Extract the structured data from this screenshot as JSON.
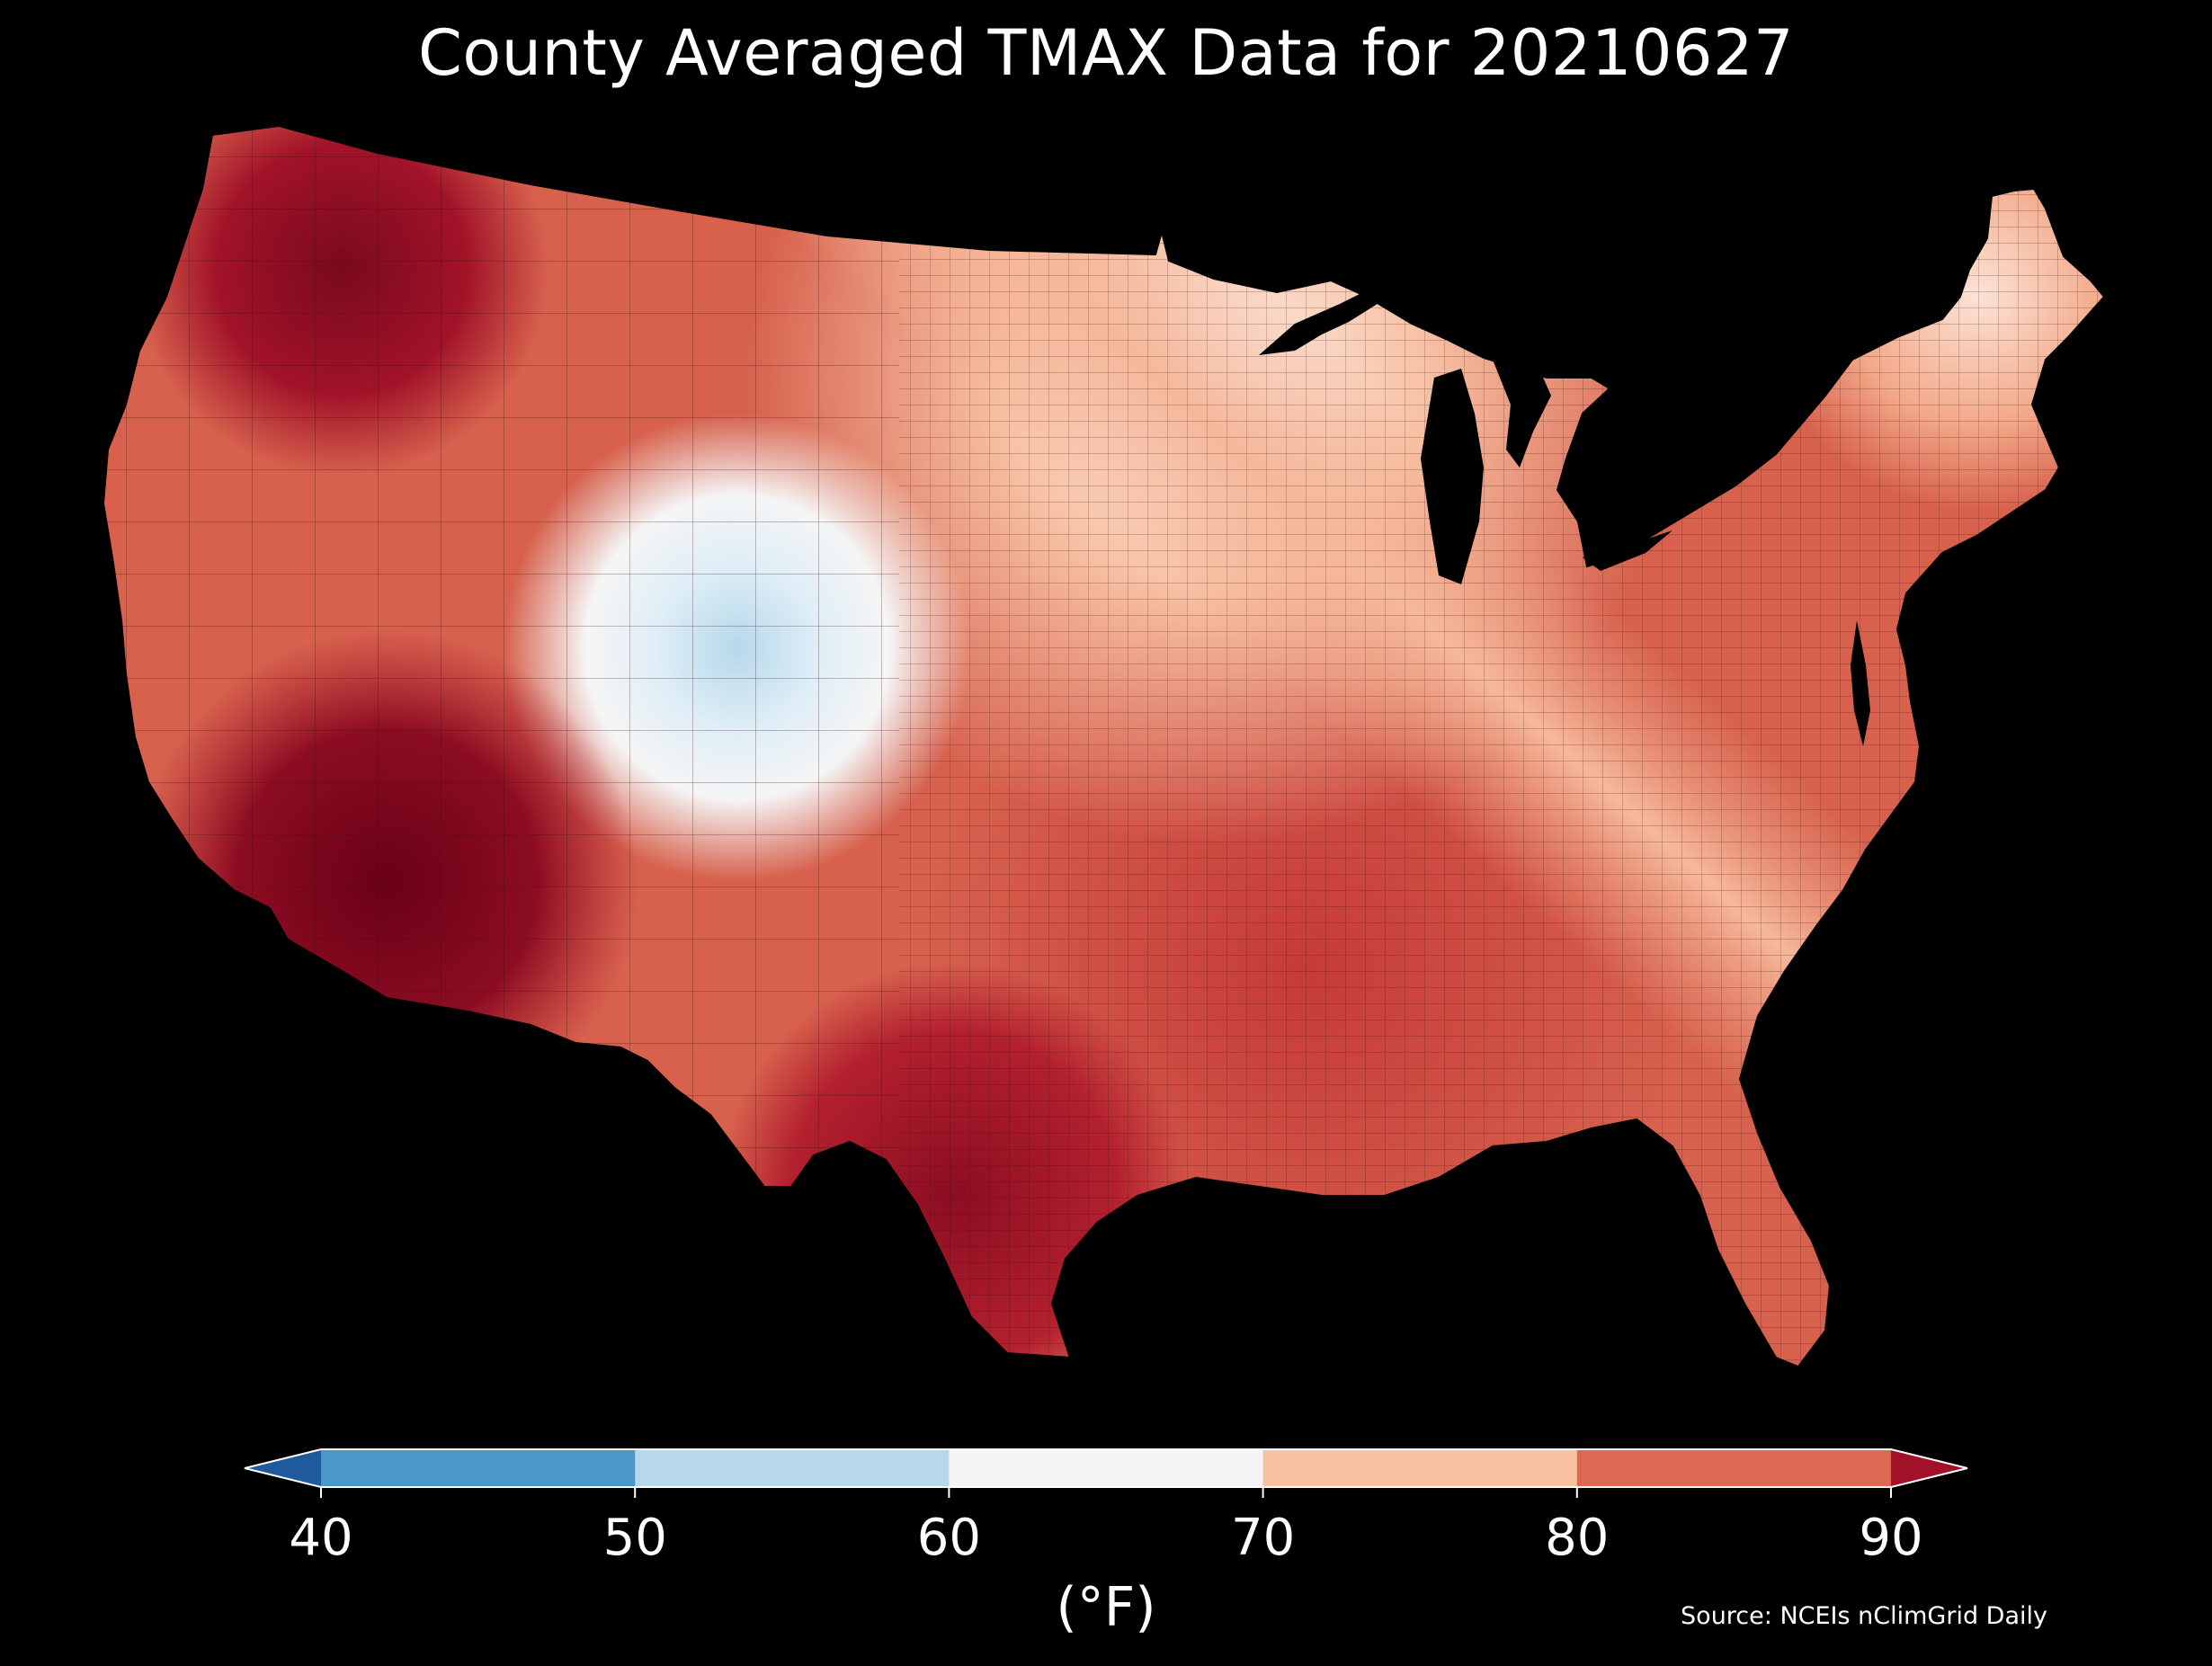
{
  "title": "County Averaged TMAX Data for 20210627",
  "source": "Source: NCEIs nClimGrid Daily",
  "colorbar": {
    "unit_label": "(°F)",
    "ticks": [
      "40",
      "50",
      "60",
      "70",
      "80",
      "90"
    ],
    "bins": [
      {
        "range": "<40",
        "color": "#1f5b9c"
      },
      {
        "range": "40-50",
        "color": "#4a98c9"
      },
      {
        "range": "50-60",
        "color": "#b6d8ea"
      },
      {
        "range": "60-70",
        "color": "#f5f5f5"
      },
      {
        "range": "70-80",
        "color": "#f8c2a4"
      },
      {
        "range": "80-90",
        "color": "#de6952"
      },
      {
        "range": ">90",
        "color": "#a11228"
      }
    ],
    "extend": "both"
  },
  "map": {
    "type": "choropleth",
    "region": "Contiguous United States",
    "units": "county",
    "variable": "TMAX",
    "date": "20210627",
    "land_fill_base": "#d7614d",
    "water_color": "#000000",
    "county_border_color": "#3a0a0a"
  }
}
